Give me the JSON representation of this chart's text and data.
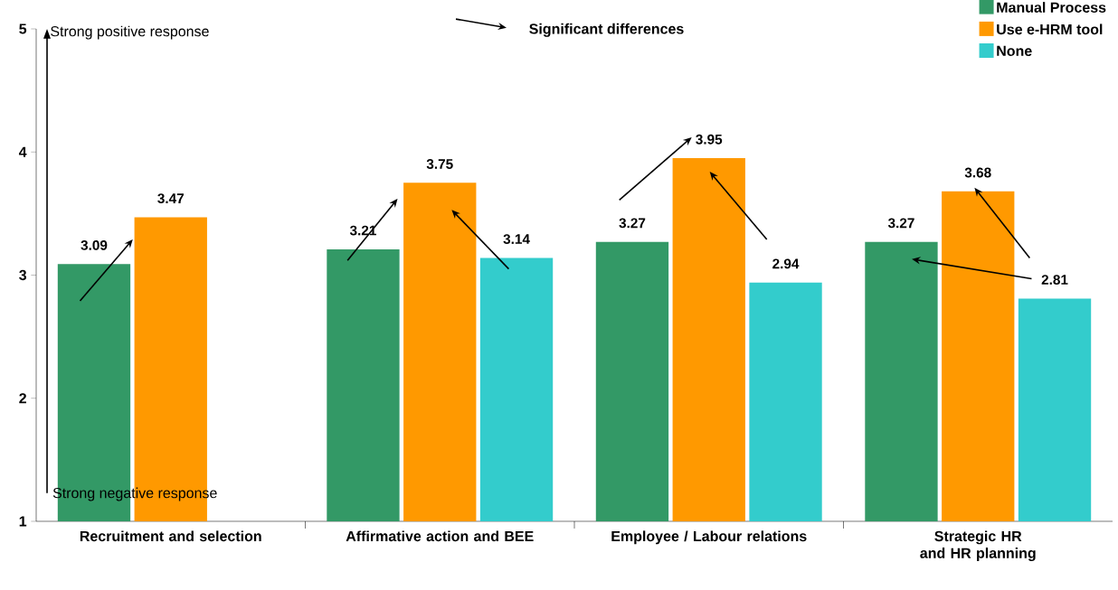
{
  "chart_data": {
    "type": "bar",
    "categories": [
      "Recruitment and selection",
      "Affirmative action and BEE",
      "Employee / Labour relations",
      "Strategic HR and HR planning"
    ],
    "series": [
      {
        "name": "Manual Process",
        "color": "#339966",
        "values": [
          3.09,
          3.21,
          3.27,
          3.27
        ]
      },
      {
        "name": "Use e-HRM tool",
        "color": "#ff9900",
        "values": [
          3.47,
          3.75,
          3.95,
          3.68
        ]
      },
      {
        "name": "None",
        "color": "#33cccc",
        "values": [
          null,
          3.14,
          2.94,
          2.81
        ]
      }
    ],
    "ylim": [
      1,
      5
    ],
    "yticks": [
      1,
      2,
      3,
      4,
      5
    ],
    "data_labels": true,
    "legend": "top right",
    "grid": false,
    "annotations": [
      "Strong positive response",
      "Strong negative response",
      "Significant differences"
    ]
  }
}
